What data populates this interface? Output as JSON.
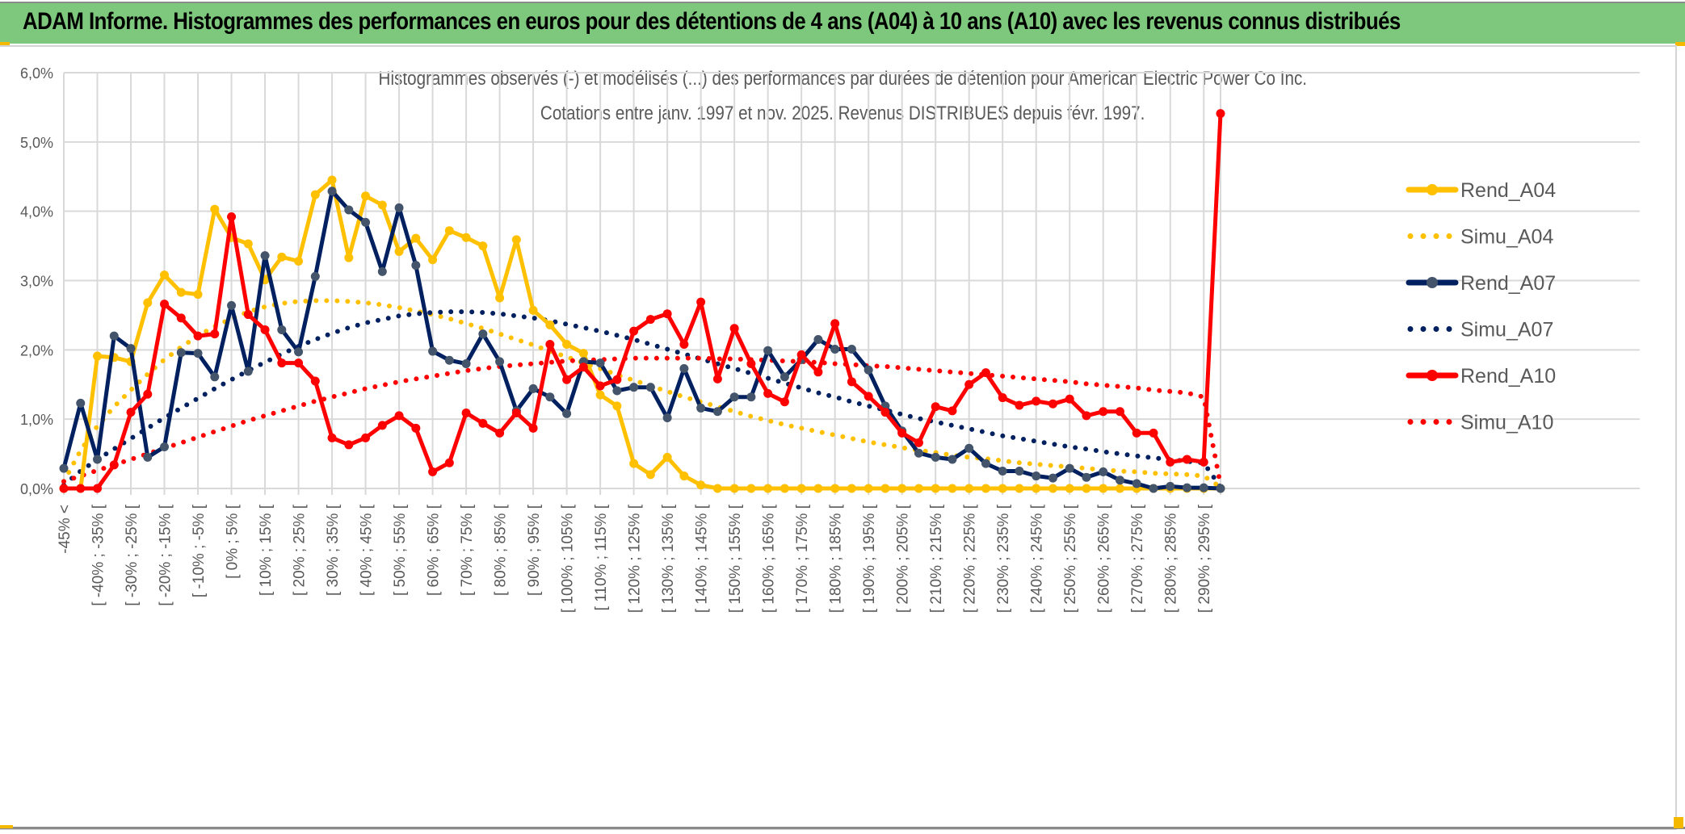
{
  "banner": {
    "title": "ADAM Informe. Histogrammes des performances en euros pour des détentions de 4 ans (A04) à 10 ans (A10) avec les revenus connus distribués"
  },
  "colors": {
    "banner_bg": "#7ec87e",
    "A04": "#ffc000",
    "A07": "#002060",
    "A07_marker": "#44546a",
    "A10": "#ff0000",
    "grid": "#d9d9d9",
    "text": "#595959"
  },
  "chart_data": {
    "type": "line",
    "title": "Histogrammes observés (-) et modélisés (...) des performances par durées de détention pour American Electric Power Co Inc.",
    "subtitle": "Cotations entre janv. 1997 et nov. 2025. Revenus DISTRIBUES depuis févr. 1997.",
    "xlabel": "",
    "ylabel": "",
    "ylim": [
      0,
      6
    ],
    "y_unit": "%",
    "y_ticks": [
      "0,0%",
      "1,0%",
      "2,0%",
      "3,0%",
      "4,0%",
      "5,0%",
      "6,0%"
    ],
    "grid": true,
    "legend_position": "right",
    "x_tick_labels": [
      "-45% <",
      "[ -40% ; -35% [",
      "[ -30% ; -25% [",
      "[ -20% ; -15% [",
      "[ -10% ; -5% [",
      "[ 0% ; 5% [",
      "[ 10% ; 15% [",
      "[ 20% ; 25% [",
      "[ 30% ; 35% [",
      "[ 40% ; 45% [",
      "[ 50% ; 55% [",
      "[ 60% ; 65% [",
      "[ 70% ; 75% [",
      "[ 80% ; 85% [",
      "[ 90% ; 95% [",
      "[ 100% ; 105% [",
      "[ 110% ; 115% [",
      "[ 120% ; 125% [",
      "[ 130% ; 135% [",
      "[ 140% ; 145% [",
      "[ 150% ; 155% [",
      "[ 160% ; 165% [",
      "[ 170% ; 175% [",
      "[ 180% ; 185% [",
      "[ 190% ; 195% [",
      "[ 200% ; 205% [",
      "[ 210% ; 215% [",
      "[ 220% ; 225% [",
      "[ 230% ; 235% [",
      "[ 240% ; 245% [",
      "[ 250% ; 255% [",
      "[ 260% ; 265% [",
      "[ 270% ; 275% [",
      "[ 280% ; 285% [",
      "[ 290% ; 295% ["
    ],
    "n_categories": 70,
    "tick_label_every": 2,
    "series": [
      {
        "name": "Rend_A04",
        "style": "solid",
        "color": "#ffc000",
        "markers": true,
        "values": [
          0.0,
          0.0,
          1.91,
          1.89,
          1.83,
          2.68,
          3.08,
          2.83,
          2.8,
          4.03,
          3.62,
          3.53,
          3.01,
          3.34,
          3.28,
          4.24,
          4.45,
          3.33,
          4.22,
          4.09,
          3.42,
          3.61,
          3.3,
          3.72,
          3.62,
          3.5,
          2.75,
          3.59,
          2.57,
          2.36,
          2.08,
          1.95,
          1.35,
          1.19,
          0.36,
          0.2,
          0.45,
          0.18,
          0.05,
          0.0,
          0.0,
          0.0,
          0.0,
          0.0,
          0.0,
          0.0,
          0.0,
          0.0,
          0.0,
          0.0,
          0.0,
          0.0,
          0.0,
          0.0,
          0.0,
          0.0,
          0.0,
          0.0,
          0.0,
          0.0,
          0.0,
          0.0,
          0.0,
          0.0,
          0.0,
          0.0,
          0.0,
          0.0,
          0.0,
          0.0
        ]
      },
      {
        "name": "Simu_A04",
        "style": "dotted",
        "color": "#ffc000",
        "markers": false,
        "values": [
          0.1,
          0.55,
          0.9,
          1.18,
          1.42,
          1.65,
          1.86,
          2.04,
          2.2,
          2.34,
          2.45,
          2.55,
          2.62,
          2.67,
          2.7,
          2.71,
          2.71,
          2.7,
          2.68,
          2.65,
          2.61,
          2.56,
          2.51,
          2.45,
          2.38,
          2.31,
          2.23,
          2.15,
          2.07,
          1.98,
          1.9,
          1.81,
          1.73,
          1.64,
          1.56,
          1.48,
          1.4,
          1.32,
          1.25,
          1.18,
          1.11,
          1.04,
          0.98,
          0.92,
          0.87,
          0.82,
          0.77,
          0.72,
          0.67,
          0.63,
          0.59,
          0.55,
          0.52,
          0.48,
          0.45,
          0.43,
          0.4,
          0.37,
          0.35,
          0.33,
          0.31,
          0.29,
          0.27,
          0.25,
          0.24,
          0.22,
          0.21,
          0.2,
          0.18,
          0.02
        ]
      },
      {
        "name": "Rend_A07",
        "style": "solid",
        "color": "#002060",
        "markers": true,
        "values": [
          0.29,
          1.23,
          0.42,
          2.2,
          2.02,
          0.45,
          0.6,
          1.96,
          1.95,
          1.61,
          2.64,
          1.69,
          3.36,
          2.29,
          1.97,
          3.06,
          4.29,
          4.02,
          3.84,
          3.13,
          4.05,
          3.22,
          1.98,
          1.85,
          1.8,
          2.23,
          1.83,
          1.12,
          1.44,
          1.32,
          1.08,
          1.83,
          1.81,
          1.41,
          1.46,
          1.46,
          1.02,
          1.73,
          1.16,
          1.11,
          1.32,
          1.32,
          1.99,
          1.61,
          1.86,
          2.15,
          2.01,
          2.01,
          1.71,
          1.19,
          0.83,
          0.51,
          0.45,
          0.42,
          0.58,
          0.36,
          0.25,
          0.25,
          0.18,
          0.15,
          0.29,
          0.16,
          0.24,
          0.12,
          0.07,
          0.0,
          0.03,
          0.01,
          0.01,
          0.0
        ]
      },
      {
        "name": "Simu_A07",
        "style": "dotted",
        "color": "#002060",
        "markers": false,
        "values": [
          0.05,
          0.25,
          0.42,
          0.57,
          0.72,
          0.87,
          1.02,
          1.16,
          1.3,
          1.44,
          1.57,
          1.7,
          1.82,
          1.94,
          2.05,
          2.15,
          2.24,
          2.32,
          2.39,
          2.44,
          2.49,
          2.52,
          2.54,
          2.55,
          2.55,
          2.54,
          2.52,
          2.49,
          2.46,
          2.42,
          2.37,
          2.32,
          2.27,
          2.21,
          2.15,
          2.08,
          2.01,
          1.94,
          1.87,
          1.8,
          1.73,
          1.66,
          1.59,
          1.52,
          1.45,
          1.38,
          1.32,
          1.25,
          1.19,
          1.13,
          1.07,
          1.01,
          0.96,
          0.91,
          0.86,
          0.81,
          0.76,
          0.72,
          0.68,
          0.64,
          0.6,
          0.57,
          0.53,
          0.5,
          0.47,
          0.44,
          0.42,
          0.39,
          0.37,
          0.02
        ]
      },
      {
        "name": "Rend_A10",
        "style": "solid",
        "color": "#ff0000",
        "markers": true,
        "values": [
          0.0,
          0.0,
          0.0,
          0.34,
          1.1,
          1.36,
          2.66,
          2.46,
          2.2,
          2.23,
          3.92,
          2.51,
          2.29,
          1.81,
          1.81,
          1.55,
          0.73,
          0.63,
          0.73,
          0.91,
          1.05,
          0.87,
          0.24,
          0.37,
          1.09,
          0.94,
          0.8,
          1.09,
          0.87,
          2.08,
          1.57,
          1.75,
          1.48,
          1.57,
          2.27,
          2.44,
          2.52,
          2.08,
          2.69,
          1.58,
          2.31,
          1.8,
          1.37,
          1.25,
          1.93,
          1.68,
          2.38,
          1.54,
          1.33,
          1.1,
          0.8,
          0.66,
          1.18,
          1.12,
          1.5,
          1.67,
          1.31,
          1.2,
          1.26,
          1.22,
          1.29,
          1.05,
          1.11,
          1.11,
          0.8,
          0.8,
          0.38,
          0.42,
          0.38,
          5.41
        ]
      },
      {
        "name": "Simu_A10",
        "style": "dotted",
        "color": "#ff0000",
        "markers": false,
        "values": [
          0.1,
          0.18,
          0.26,
          0.34,
          0.42,
          0.5,
          0.58,
          0.66,
          0.74,
          0.82,
          0.9,
          0.98,
          1.05,
          1.12,
          1.19,
          1.26,
          1.32,
          1.38,
          1.44,
          1.49,
          1.54,
          1.58,
          1.62,
          1.66,
          1.7,
          1.73,
          1.76,
          1.78,
          1.8,
          1.82,
          1.84,
          1.85,
          1.86,
          1.87,
          1.88,
          1.88,
          1.88,
          1.88,
          1.88,
          1.87,
          1.87,
          1.86,
          1.85,
          1.84,
          1.83,
          1.82,
          1.8,
          1.79,
          1.77,
          1.76,
          1.74,
          1.72,
          1.7,
          1.68,
          1.66,
          1.64,
          1.62,
          1.6,
          1.58,
          1.56,
          1.54,
          1.51,
          1.49,
          1.47,
          1.45,
          1.42,
          1.4,
          1.38,
          1.32,
          0.05
        ]
      }
    ]
  }
}
